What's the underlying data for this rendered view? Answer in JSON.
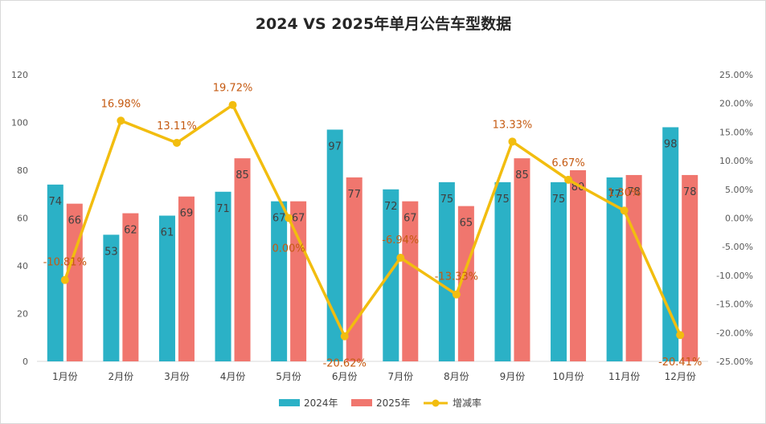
{
  "chart_data": {
    "type": "bar",
    "title": "2024 VS 2025年单月公告车型数据",
    "categories": [
      "1月份",
      "2月份",
      "3月份",
      "4月份",
      "5月份",
      "6月份",
      "7月份",
      "8月份",
      "9月份",
      "10月份",
      "11月份",
      "12月份"
    ],
    "series": [
      {
        "name": "2024年",
        "type": "bar",
        "color": "#2bb1c6",
        "values": [
          74,
          53,
          61,
          71,
          67,
          97,
          72,
          75,
          75,
          75,
          77,
          98
        ]
      },
      {
        "name": "2025年",
        "type": "bar",
        "color": "#f0766e",
        "values": [
          66,
          62,
          69,
          85,
          67,
          77,
          67,
          65,
          85,
          80,
          78,
          78
        ]
      },
      {
        "name": "增减率",
        "type": "line",
        "axis": "right",
        "color": "#f2bd0f",
        "values": [
          -10.81,
          16.98,
          13.11,
          19.72,
          0.0,
          -20.62,
          -6.94,
          -13.33,
          13.33,
          6.67,
          1.3,
          -20.41
        ],
        "labels": [
          "-10.81%",
          "16.98%",
          "13.11%",
          "19.72%",
          "0.00%",
          "-20.62%",
          "-6.94%",
          "-13.33%",
          "13.33%",
          "6.67%",
          "1.30%",
          "-20.41%"
        ]
      }
    ],
    "ylim": [
      0,
      120
    ],
    "y_ticks": [
      "0",
      "20",
      "40",
      "60",
      "80",
      "100",
      "120"
    ],
    "y2lim": [
      -25,
      25
    ],
    "y2_ticks": [
      "-25.00%",
      "-20.00%",
      "-15.00%",
      "-10.00%",
      "-5.00%",
      "0.00%",
      "5.00%",
      "10.00%",
      "15.00%",
      "20.00%",
      "25.00%"
    ],
    "legend_position": "bottom",
    "grid": false
  }
}
